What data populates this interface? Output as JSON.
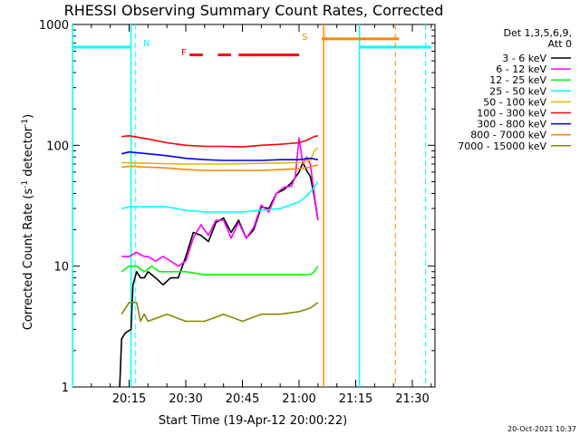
{
  "chart_data": {
    "type": "line",
    "title": "RHESSI Observing Summary Count Rates, Corrected",
    "xlabel": "Start Time (19-Apr-12 20:00:22)",
    "ylabel_main": "Corrected Count Rate (s",
    "ylabel_sup1": "-1",
    "ylabel_mid": " detector",
    "ylabel_sup2": "-1",
    "ylabel_end": ")",
    "yscale": "log",
    "ylim": [
      1,
      1000
    ],
    "xlim_minutes": [
      0,
      96
    ],
    "x_tick_labels": [
      "20:15",
      "20:30",
      "20:45",
      "21:00",
      "21:15",
      "21:30"
    ],
    "x_tick_minutes": [
      15,
      30,
      45,
      60,
      75,
      90
    ],
    "y_tick_labels": [
      "1",
      "10",
      "100",
      "1000"
    ],
    "y_tick_values": [
      1,
      10,
      100,
      1000
    ],
    "legend_title_1": "Det 1,3,5,6,9,",
    "legend_title_2": "Att 0",
    "legend_position": "top-right outside",
    "series": [
      {
        "name": "3 - 6 keV",
        "color": "#000000",
        "x": [
          12.5,
          13,
          14,
          15.5,
          16,
          17,
          18,
          19,
          20,
          22,
          24,
          26,
          28,
          30,
          32,
          34,
          36,
          38,
          40,
          42,
          44,
          46,
          48,
          50,
          52,
          54,
          56,
          58,
          60,
          61,
          62,
          63,
          64,
          65
        ],
        "y": [
          1.0,
          2.5,
          2.8,
          3.0,
          7,
          9,
          8,
          8,
          9,
          8,
          7,
          8,
          8,
          12,
          19,
          18,
          16,
          23,
          25,
          19,
          24,
          17,
          20,
          31,
          30,
          40,
          43,
          49,
          60,
          72,
          62,
          55,
          38,
          24
        ]
      },
      {
        "name": "6 - 12 keV",
        "color": "#ff00ff",
        "x": [
          13,
          15,
          17,
          19,
          20,
          22,
          24,
          26,
          28,
          30,
          32,
          34,
          36,
          38,
          40,
          42,
          44,
          46,
          48,
          50,
          52,
          54,
          56,
          58,
          59,
          60,
          61,
          62,
          63,
          64,
          65
        ],
        "y": [
          12,
          12,
          13,
          12,
          12,
          11,
          12,
          11,
          10,
          11,
          17,
          22,
          18,
          24,
          24,
          17,
          23,
          17,
          21,
          32,
          28,
          40,
          45,
          46,
          55,
          115,
          70,
          80,
          70,
          40,
          24
        ]
      },
      {
        "name": "12 - 25 keV",
        "color": "#00ff00",
        "x": [
          13,
          15,
          17,
          19,
          21,
          23,
          25,
          27,
          30,
          35,
          40,
          45,
          50,
          55,
          60,
          63,
          64,
          65
        ],
        "y": [
          9,
          10,
          10,
          9,
          10,
          9,
          9,
          9,
          9,
          8.5,
          8.5,
          8.5,
          8.5,
          8.5,
          8.5,
          8.5,
          9,
          10
        ]
      },
      {
        "name": "25 - 50 keV",
        "color": "#00ffff",
        "x": [
          13,
          15,
          20,
          25,
          30,
          35,
          40,
          45,
          50,
          55,
          60,
          62,
          64,
          65
        ],
        "y": [
          30,
          31,
          31,
          31,
          29,
          28,
          28,
          28,
          29,
          30,
          34,
          38,
          45,
          50
        ]
      },
      {
        "name": "50 - 100 keV",
        "color": "#ddbb00",
        "x": [
          13,
          20,
          30,
          40,
          50,
          60,
          63,
          64,
          65
        ],
        "y": [
          72,
          71,
          70,
          70,
          71,
          72,
          75,
          90,
          95
        ]
      },
      {
        "name": "100 - 300 keV",
        "color": "#ff0000",
        "x": [
          13,
          15,
          20,
          25,
          30,
          35,
          40,
          45,
          50,
          55,
          60,
          62,
          64,
          65
        ],
        "y": [
          118,
          120,
          113,
          105,
          100,
          98,
          98,
          97,
          100,
          102,
          105,
          110,
          118,
          120
        ]
      },
      {
        "name": "300 - 800 keV",
        "color": "#0000ff",
        "x": [
          13,
          15,
          20,
          25,
          30,
          35,
          40,
          45,
          50,
          55,
          60,
          63,
          65
        ],
        "y": [
          85,
          88,
          85,
          82,
          78,
          76,
          75,
          75,
          75,
          76,
          76,
          78,
          76
        ]
      },
      {
        "name": "800 - 7000 keV",
        "color": "#ff8800",
        "x": [
          13,
          15,
          20,
          25,
          30,
          35,
          40,
          45,
          50,
          55,
          60,
          63,
          65
        ],
        "y": [
          66,
          67,
          66,
          65,
          63,
          62,
          62,
          62,
          62,
          63,
          64,
          66,
          69
        ]
      },
      {
        "name": "7000 - 15000 keV",
        "color": "#888800",
        "x": [
          13,
          15,
          17,
          18,
          19,
          20,
          25,
          30,
          35,
          40,
          45,
          50,
          55,
          60,
          63,
          65
        ],
        "y": [
          4,
          5,
          5,
          3.5,
          4,
          3.5,
          4,
          3.5,
          3.5,
          4,
          3.5,
          4,
          4,
          4.2,
          4.5,
          5
        ]
      }
    ],
    "annotations": {
      "N_label": "N",
      "F_label": "F",
      "S_label": "S",
      "night_level": 650,
      "night_bars": [
        [
          0,
          15.5
        ],
        [
          76,
          95
        ]
      ],
      "night_marker_lines": [
        15.5,
        76
      ],
      "night_dashed": [
        16.6,
        93.5
      ],
      "flare_level": 560,
      "flare_segments": [
        [
          31,
          34.5
        ],
        [
          38.5,
          42
        ],
        [
          44,
          60
        ]
      ],
      "saa_level": 760,
      "saa_bar": [
        66,
        86.5
      ],
      "saa_solid_line": 66.5,
      "saa_dashed": 85.5,
      "colors": {
        "night": "#00ffff",
        "flare": "#ff0000",
        "saa": "#ff8800"
      }
    },
    "timestamp": "20-Oct-2021 10:37"
  }
}
